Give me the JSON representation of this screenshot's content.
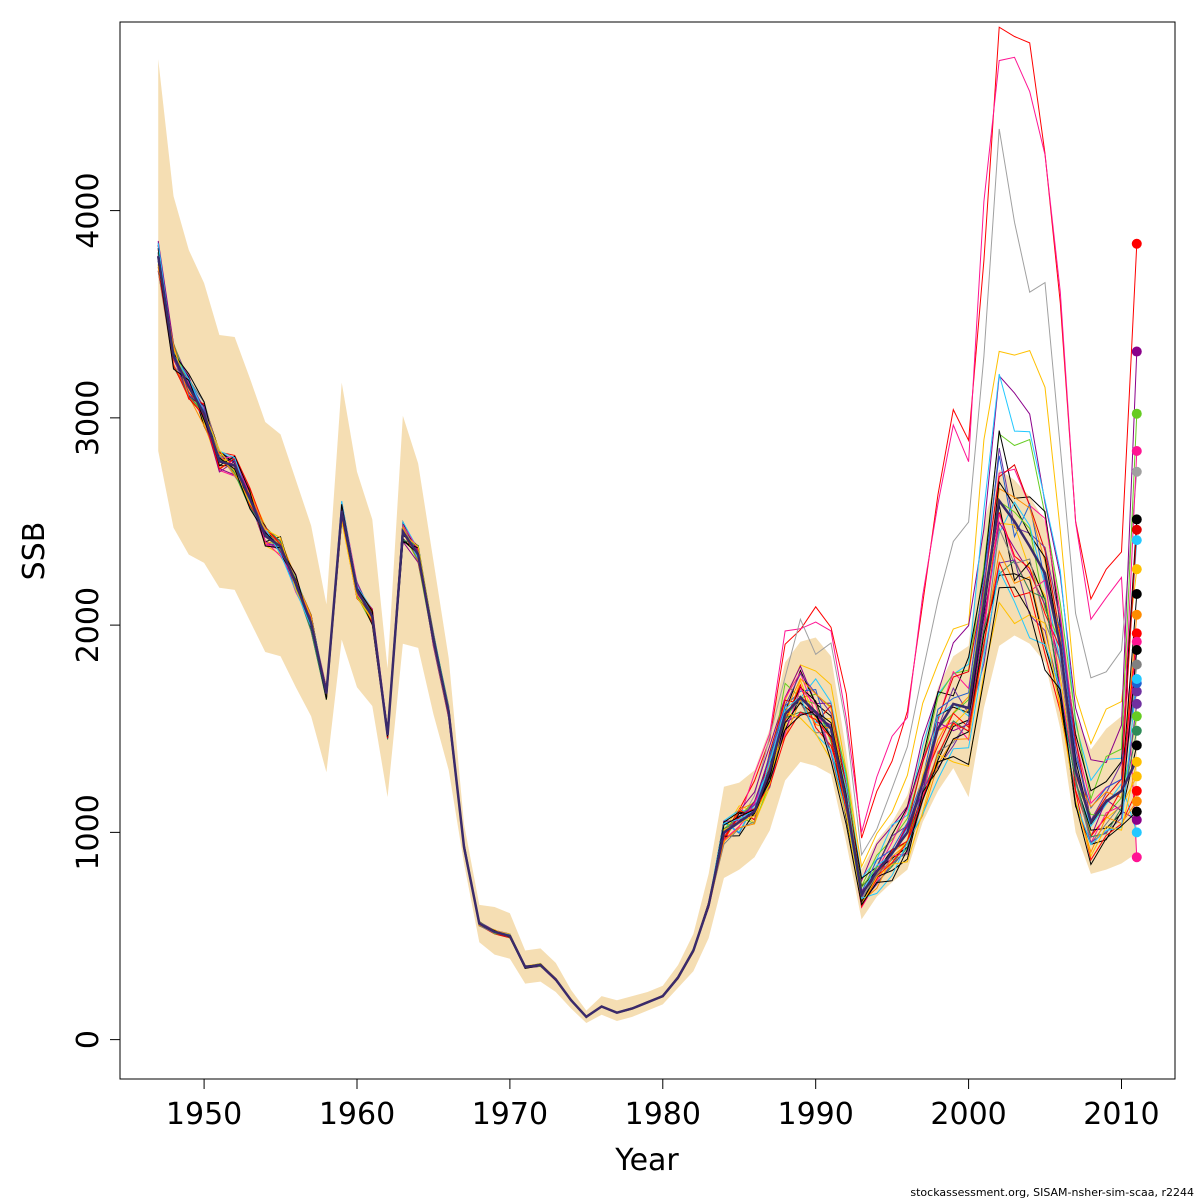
{
  "chart_data": {
    "type": "line",
    "xlabel": "Year",
    "ylabel": "SSB",
    "xlim": [
      1944.5,
      2013.5
    ],
    "ylim": [
      -190,
      4910
    ],
    "x_ticks": [
      1950,
      1960,
      1970,
      1980,
      1990,
      2000,
      2010
    ],
    "y_ticks": [
      0,
      1000,
      2000,
      3000,
      4000
    ],
    "grid": false,
    "legend": "none",
    "band_color": "#F5DEB3",
    "years": [
      1947,
      1948,
      1949,
      1950,
      1951,
      1952,
      1953,
      1954,
      1955,
      1956,
      1957,
      1958,
      1959,
      1960,
      1961,
      1962,
      1963,
      1964,
      1965,
      1966,
      1967,
      1968,
      1969,
      1970,
      1971,
      1972,
      1973,
      1974,
      1975,
      1976,
      1977,
      1978,
      1979,
      1980,
      1981,
      1982,
      1983,
      1984,
      1985,
      1986,
      1987,
      1988,
      1989,
      1990,
      1991,
      1992,
      1993,
      1994,
      1995,
      1996,
      1997,
      1998,
      1999,
      2000,
      2001,
      2002,
      2003,
      2004,
      2005,
      2006,
      2007,
      2008,
      2009,
      2010,
      2011
    ],
    "central_ssb": [
      3780,
      3300,
      3150,
      3020,
      2790,
      2770,
      2610,
      2430,
      2380,
      2200,
      2010,
      1670,
      2550,
      2170,
      2040,
      1470,
      2450,
      2340,
      1930,
      1580,
      930,
      560,
      520,
      500,
      350,
      360,
      290,
      190,
      110,
      160,
      130,
      150,
      180,
      210,
      300,
      430,
      650,
      1000,
      1050,
      1100,
      1300,
      1570,
      1650,
      1580,
      1500,
      1150,
      700,
      810,
      900,
      1000,
      1240,
      1500,
      1620,
      1600,
      2100,
      2600,
      2500,
      2380,
      2250,
      1900,
      1300,
      1050,
      1150,
      1200,
      1350
    ],
    "lower_band": [
      2840,
      2470,
      2340,
      2300,
      2180,
      2170,
      2020,
      1870,
      1850,
      1700,
      1560,
      1290,
      1930,
      1700,
      1610,
      1170,
      1910,
      1890,
      1570,
      1300,
      850,
      470,
      410,
      390,
      270,
      280,
      230,
      150,
      80,
      120,
      90,
      110,
      140,
      170,
      250,
      330,
      490,
      780,
      820,
      880,
      1010,
      1250,
      1340,
      1320,
      1280,
      950,
      580,
      690,
      760,
      820,
      1050,
      1200,
      1310,
      1170,
      1600,
      1900,
      1950,
      1910,
      1820,
      1500,
      1000,
      800,
      820,
      850,
      900
    ],
    "upper_band": [
      4730,
      4070,
      3810,
      3650,
      3400,
      3390,
      3190,
      2980,
      2920,
      2700,
      2480,
      2100,
      3170,
      2740,
      2510,
      1790,
      3010,
      2780,
      2310,
      1840,
      1040,
      650,
      640,
      610,
      430,
      440,
      370,
      240,
      140,
      210,
      190,
      210,
      230,
      260,
      360,
      510,
      800,
      1220,
      1240,
      1300,
      1500,
      1820,
      1920,
      1940,
      1850,
      1390,
      820,
      960,
      1050,
      1180,
      1430,
      1700,
      1850,
      1900,
      2500,
      2750,
      2700,
      2620,
      2500,
      2100,
      1560,
      1400,
      1500,
      1560,
      1750
    ],
    "series": [
      {
        "color": "#FF0000",
        "peak_scale": 1.95,
        "end": 3840
      },
      {
        "color": "#FF1493",
        "peak_scale": 1.9,
        "end": 880
      },
      {
        "color": "#A0A0A0",
        "peak_scale": 1.6,
        "end": 2740
      },
      {
        "color": "#FFC000",
        "peak_scale": 1.35,
        "end": 2270
      },
      {
        "color": "#8B008B",
        "peak_scale": 1.22,
        "end": 3320
      },
      {
        "color": "#22C8FF",
        "peak_scale": 1.18,
        "end": 2410
      },
      {
        "color": "#66CC22",
        "peak_scale": 1.15,
        "end": 3020
      },
      {
        "color": "#000000",
        "peak_scale": 1.1,
        "end": 2510
      },
      {
        "color": "#FF1493",
        "peak_scale": 1.08,
        "end": 2840
      },
      {
        "color": "#E00000",
        "peak_scale": 1.06,
        "end": 2460
      },
      {
        "color": "#7030A0",
        "peak_scale": 1.05,
        "end": 1680
      },
      {
        "color": "#2060D0",
        "peak_scale": 1.03,
        "end": 1720
      },
      {
        "color": "#FF8C00",
        "peak_scale": 1.02,
        "end": 2050
      },
      {
        "color": "#000000",
        "peak_scale": 1.0,
        "end": 2150
      },
      {
        "color": "#22C8FF",
        "peak_scale": 0.99,
        "end": 1000
      },
      {
        "color": "#66CC22",
        "peak_scale": 0.98,
        "end": 1560
      },
      {
        "color": "#FFC000",
        "peak_scale": 0.97,
        "end": 1270
      },
      {
        "color": "#8B008B",
        "peak_scale": 0.96,
        "end": 1060
      },
      {
        "color": "#FF0000",
        "peak_scale": 0.95,
        "end": 1960
      },
      {
        "color": "#000000",
        "peak_scale": 0.94,
        "end": 1420
      },
      {
        "color": "#FF1493",
        "peak_scale": 0.93,
        "end": 1920
      },
      {
        "color": "#808080",
        "peak_scale": 0.92,
        "end": 1810
      },
      {
        "color": "#2E8B57",
        "peak_scale": 0.91,
        "end": 1490
      },
      {
        "color": "#7030A0",
        "peak_scale": 0.9,
        "end": 1620
      },
      {
        "color": "#FF8C00",
        "peak_scale": 0.89,
        "end": 1150
      },
      {
        "color": "#000000",
        "peak_scale": 0.88,
        "end": 1880
      },
      {
        "color": "#FF0000",
        "peak_scale": 0.87,
        "end": 1200
      },
      {
        "color": "#22C8FF",
        "peak_scale": 0.86,
        "end": 1740
      },
      {
        "color": "#FFC000",
        "peak_scale": 0.85,
        "end": 1340
      },
      {
        "color": "#000000",
        "peak_scale": 0.84,
        "end": 1100
      }
    ]
  },
  "footer": "stockassessment.org, SISAM-nsher-sim-scaa, r2244"
}
